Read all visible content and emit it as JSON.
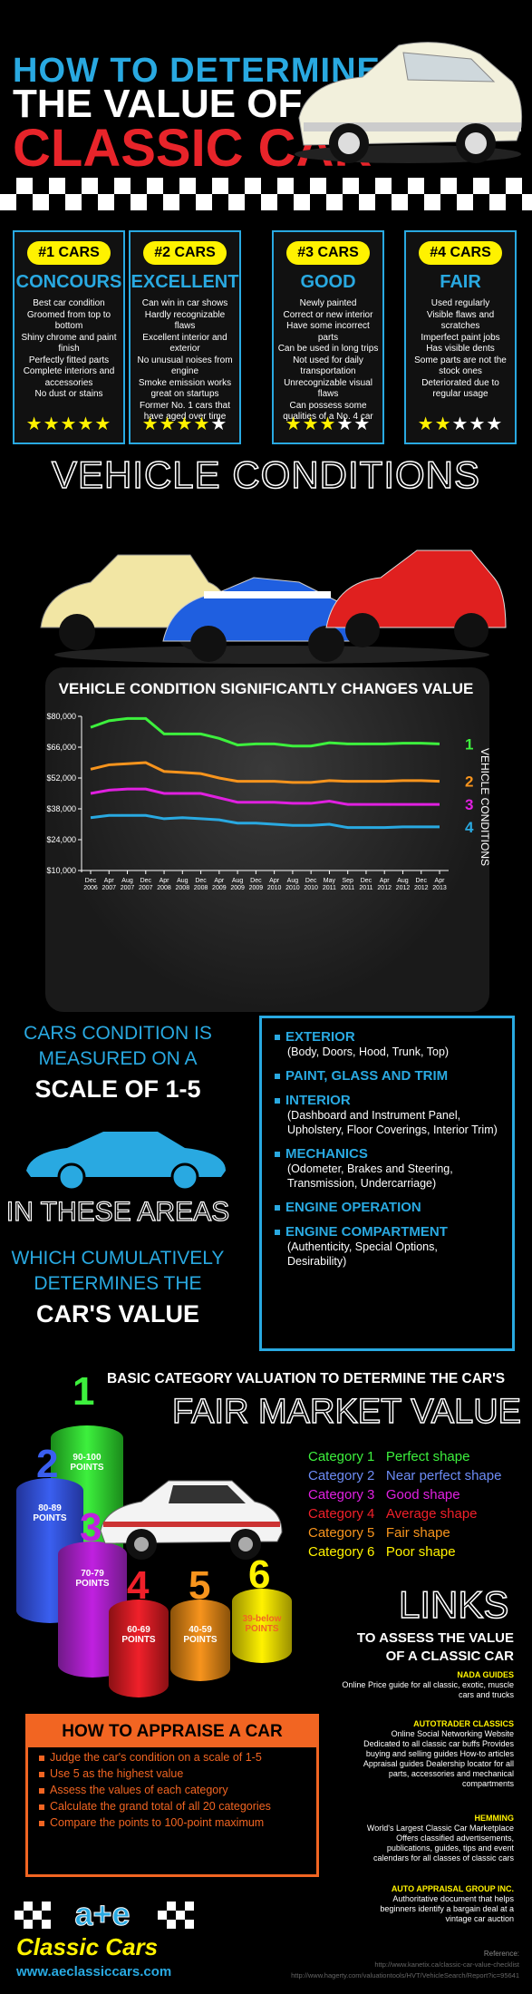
{
  "header": {
    "line1": "HOW TO DETERMINE",
    "line2": "THE VALUE OF A",
    "line3": "CLASSIC CAR"
  },
  "conditions": [
    {
      "badge": "#1 CARS",
      "title": "CONCOURS",
      "desc": [
        "Best car condition",
        "Groomed from top to bottom",
        "Shiny chrome and paint finish",
        "Perfectly fitted parts",
        "Complete interiors and accessories",
        "No dust or stains"
      ],
      "stars": 5
    },
    {
      "badge": "#2 CARS",
      "title": "EXCELLENT",
      "desc": [
        "Can win in car shows",
        "Hardly recognizable flaws",
        "Excellent interior and exterior",
        "No unusual noises from engine",
        "Smoke emission works great on startups",
        "Former No. 1 cars that have aged over time"
      ],
      "stars": 4
    },
    {
      "badge": "#3 CARS",
      "title": "GOOD",
      "desc": [
        "Newly painted",
        "Correct or new interior",
        "Have some incorrect parts",
        "Can be used in long trips",
        "Not used for daily transportation",
        "Unrecognizable visual flaws",
        "Can possess some qualities of a No. 4 car"
      ],
      "stars": 3
    },
    {
      "badge": "#4 CARS",
      "title": "FAIR",
      "desc": [
        "Used regularly",
        "Visible flaws and scratches",
        "Imperfect paint jobs",
        "Has visible dents",
        "Some parts are not the stock ones",
        "Deteriorated due to regular usage"
      ],
      "stars": 2
    }
  ],
  "vehicle_conditions_title": "VEHICLE CONDITIONS",
  "chart_data": {
    "type": "line",
    "title": "VEHICLE CONDITION SIGNIFICANTLY CHANGES VALUE",
    "ylabel": "VEHICLE CONDITIONS",
    "ylim": [
      10000,
      80000
    ],
    "yticks": [
      "$80,000",
      "$66,000",
      "$52,000",
      "$38,000",
      "$24,000",
      "$10,000"
    ],
    "ytick_values": [
      80000,
      66000,
      52000,
      38000,
      24000,
      10000
    ],
    "x": [
      "Dec 2006",
      "Apr 2007",
      "Aug 2007",
      "Dec 2007",
      "Apr 2008",
      "Aug 2008",
      "Dec 2008",
      "Apr 2009",
      "Aug 2009",
      "Dec 2009",
      "Apr 2010",
      "Aug 2010",
      "Dec 2010",
      "May 2011",
      "Sep 2011",
      "Dec 2011",
      "Apr 2012",
      "Aug 2012",
      "Dec 2012",
      "Apr 2013"
    ],
    "series": [
      {
        "name": "1",
        "color": "#3df03d",
        "values": [
          75000,
          78000,
          79000,
          79000,
          72000,
          72000,
          72000,
          70000,
          67000,
          67500,
          67500,
          66500,
          66500,
          68000,
          67500,
          67500,
          67500,
          67800,
          67800,
          67500
        ]
      },
      {
        "name": "2",
        "color": "#f7941d",
        "values": [
          56000,
          58000,
          58500,
          59000,
          55000,
          54500,
          54000,
          52000,
          50500,
          50500,
          50500,
          50000,
          50000,
          50800,
          50500,
          50500,
          50500,
          50800,
          50800,
          50500
        ]
      },
      {
        "name": "3",
        "color": "#e020e0",
        "values": [
          45000,
          46500,
          47000,
          47000,
          45000,
          45000,
          45000,
          43000,
          41000,
          41000,
          41000,
          40500,
          40500,
          41500,
          40000,
          40000,
          40000,
          40000,
          40000,
          40000
        ]
      },
      {
        "name": "4",
        "color": "#29a9e1",
        "values": [
          34000,
          35000,
          35000,
          35000,
          33500,
          34000,
          33500,
          33000,
          31500,
          31500,
          31000,
          30500,
          30500,
          31000,
          29500,
          29500,
          29500,
          29800,
          29800,
          29800
        ]
      }
    ]
  },
  "scale": {
    "line1": "CARS CONDITION IS",
    "line2": "MEASURED ON A",
    "line3": "SCALE OF 1-5",
    "line4": "IN THESE AREAS",
    "line5": "WHICH CUMULATIVELY",
    "line6": "DETERMINES THE",
    "line7": "CAR'S VALUE"
  },
  "areas": [
    {
      "title": "EXTERIOR",
      "desc": "(Body, Doors, Hood, Trunk, Top)"
    },
    {
      "title": "PAINT, GLASS AND TRIM",
      "desc": ""
    },
    {
      "title": "INTERIOR",
      "desc": "(Dashboard and Instrument Panel, Upholstery, Floor Coverings, Interior Trim)"
    },
    {
      "title": "MECHANICS",
      "desc": "(Odometer, Brakes and Steering, Transmission, Undercarriage)"
    },
    {
      "title": "ENGINE OPERATION",
      "desc": ""
    },
    {
      "title": "ENGINE COMPARTMENT",
      "desc": "(Authenticity, Special Options, Desirability)"
    }
  ],
  "valuation": {
    "line1": "BASIC CATEGORY VALUATION TO DETERMINE THE CAR'S",
    "line2": "FAIR MARKET VALUE",
    "cylinders": [
      {
        "num": "1",
        "points": "90-100\nPOINTS",
        "color": "#3df03d"
      },
      {
        "num": "2",
        "points": "80-89\nPOINTS",
        "color": "#3a5ff0"
      },
      {
        "num": "3",
        "points": "70-79\nPOINTS",
        "color": "#c020e0"
      },
      {
        "num": "4",
        "points": "60-69\nPOINTS",
        "color": "#f0202a"
      },
      {
        "num": "5",
        "points": "40-59\nPOINTS",
        "color": "#f7941d"
      },
      {
        "num": "6",
        "points": "39-below\nPOINTS",
        "color": "#fff200"
      }
    ],
    "categories": [
      {
        "label": "Category 1",
        "value": "Perfect shape",
        "color": "#3df03d"
      },
      {
        "label": "Category 2",
        "value": "Near perfect shape",
        "color": "#6d8cf5"
      },
      {
        "label": "Category 3",
        "value": "Good shape",
        "color": "#e020e0"
      },
      {
        "label": "Category 4",
        "value": "Average shape",
        "color": "#f0202a"
      },
      {
        "label": "Category 5",
        "value": "Fair shape",
        "color": "#f7941d"
      },
      {
        "label": "Category 6",
        "value": "Poor shape",
        "color": "#fff200"
      }
    ]
  },
  "links": {
    "title": "LINKS",
    "subtitle1": "TO ASSESS THE VALUE",
    "subtitle2": "OF A CLASSIC CAR",
    "items": [
      {
        "name": "NADA GUIDES",
        "desc": "Online Price guide for all classic, exotic, muscle cars and trucks"
      },
      {
        "name": "AUTOTRADER CLASSICS",
        "desc": "Online Social Networking Website Dedicated to all classic car buffs Provides buying and selling guides How-to articles Appraisal guides Dealership locator for all parts, accessories and mechanical compartments"
      },
      {
        "name": "HEMMING",
        "desc": "World's Largest Classic Car Marketplace Offers classified advertisements, publications, guides, tips and event calendars for all classes of classic cars"
      },
      {
        "name": "AUTO APPRAISAL GROUP INC.",
        "desc": "Authoritative document that helps beginners identify a bargain deal at a vintage car auction"
      }
    ]
  },
  "appraise": {
    "title": "HOW TO APPRAISE A CAR",
    "steps": [
      "Judge the car's condition on a scale of 1-5",
      "Use 5 as the highest value",
      "Assess the values of each category",
      "Calculate the grand total of all 20 categories",
      "Compare the points to 100-point maximum"
    ]
  },
  "footer": {
    "logo": "a+e",
    "brand": "Classic Cars",
    "url": "www.aeclassiccars.com",
    "ref_label": "Reference:",
    "ref1": "http://www.kanetix.ca/classic-car-value-checklist",
    "ref2": "http://www.hagerty.com/valuationtools/HVT/VehicleSearch/Report?ic=95641"
  }
}
